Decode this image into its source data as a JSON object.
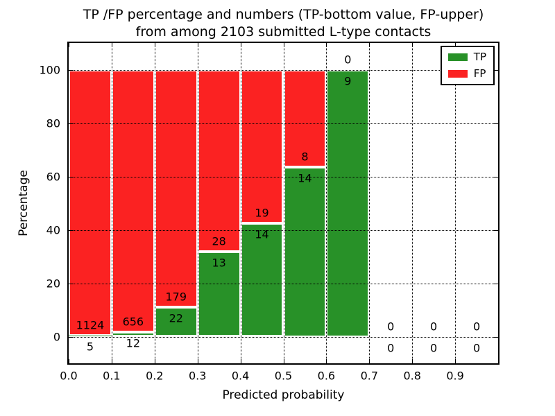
{
  "title": {
    "line1": "TP /FP percentage and numbers (TP-bottom value, FP-upper)",
    "line2": "from among 2103 submitted L-type contacts"
  },
  "chart_data": {
    "type": "bar",
    "stacked": true,
    "normalized": "percent",
    "title": "TP /FP percentage and numbers (TP-bottom value, FP-upper) from among 2103 submitted L-type contacts",
    "total_submitted_contacts": 2103,
    "xlabel": "Predicted probability",
    "ylabel": "Percentage",
    "xlim": [
      0.0,
      1.0
    ],
    "ylim": [
      -10,
      110
    ],
    "xticks": [
      "0.0",
      "0.1",
      "0.2",
      "0.3",
      "0.4",
      "0.5",
      "0.6",
      "0.7",
      "0.8",
      "0.9"
    ],
    "yticks": [
      0,
      20,
      40,
      60,
      80,
      100
    ],
    "grid": "dotted-both-axes-above-bars",
    "legend": {
      "position": "upper right",
      "entries": [
        {
          "label": "TP",
          "color": "#289128"
        },
        {
          "label": "FP",
          "color": "#fb2222"
        }
      ]
    },
    "annotation_rule": "FP count above the TP/FP boundary, TP count below it; bars show TP bottom (green) and FP upper (red) stacked to 100%",
    "bins": [
      {
        "range": [
          0.0,
          0.1
        ],
        "tp": 5,
        "fp": 1124
      },
      {
        "range": [
          0.1,
          0.2
        ],
        "tp": 12,
        "fp": 656
      },
      {
        "range": [
          0.2,
          0.3
        ],
        "tp": 22,
        "fp": 179
      },
      {
        "range": [
          0.3,
          0.4
        ],
        "tp": 13,
        "fp": 28
      },
      {
        "range": [
          0.4,
          0.5
        ],
        "tp": 14,
        "fp": 19
      },
      {
        "range": [
          0.5,
          0.6
        ],
        "tp": 14,
        "fp": 8
      },
      {
        "range": [
          0.6,
          0.7
        ],
        "tp": 9,
        "fp": 0
      },
      {
        "range": [
          0.7,
          0.8
        ],
        "tp": 0,
        "fp": 0
      },
      {
        "range": [
          0.8,
          0.9
        ],
        "tp": 0,
        "fp": 0
      },
      {
        "range": [
          0.9,
          1.0
        ],
        "tp": 0,
        "fp": 0
      }
    ]
  }
}
